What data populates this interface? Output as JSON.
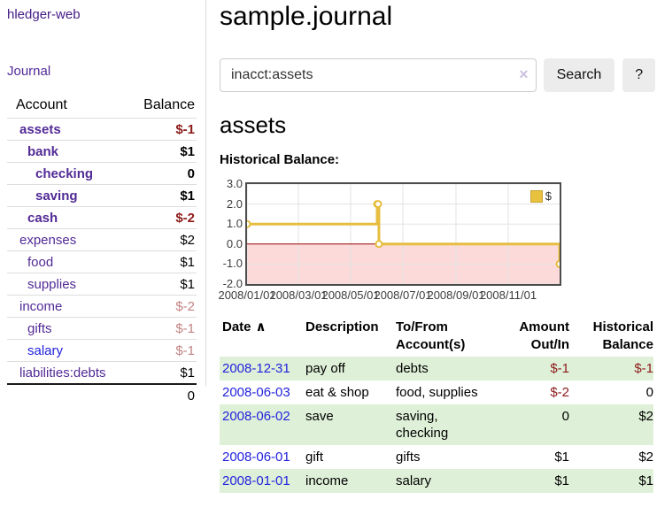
{
  "sidebar": {
    "brand": "hledger-web",
    "nav": {
      "journal": "Journal"
    },
    "table_headers": {
      "account": "Account",
      "balance": "Balance"
    },
    "accounts": [
      {
        "name": "assets",
        "balance": "$-1",
        "level": 1,
        "bold": true
      },
      {
        "name": "bank",
        "balance": "$1",
        "level": 2,
        "bold": true
      },
      {
        "name": "checking",
        "balance": "0",
        "level": 3,
        "bold": true
      },
      {
        "name": "saving",
        "balance": "$1",
        "level": 3,
        "bold": true
      },
      {
        "name": "cash",
        "balance": "$-2",
        "level": 2,
        "bold": true
      },
      {
        "name": "expenses",
        "balance": "$2",
        "level": 1,
        "bold": false
      },
      {
        "name": "food",
        "balance": "$1",
        "level": 2,
        "bold": false
      },
      {
        "name": "supplies",
        "balance": "$1",
        "level": 2,
        "bold": false
      },
      {
        "name": "income",
        "balance": "$-2",
        "level": 1,
        "bold": false
      },
      {
        "name": "gifts",
        "balance": "$-1",
        "level": 2,
        "bold": false
      },
      {
        "name": "salary",
        "balance": "$-1",
        "level": 2,
        "bold": false,
        "unvisited": true
      },
      {
        "name": "liabilities:debts",
        "balance": "$1",
        "level": 1,
        "bold": false
      }
    ],
    "total": "0"
  },
  "header": {
    "title": "sample.journal"
  },
  "search": {
    "value": "inacct:assets",
    "clear_icon": "×",
    "button": "Search",
    "help_button": "?"
  },
  "account_page": {
    "heading": "assets",
    "chart_label": "Historical Balance:"
  },
  "chart_data": {
    "type": "line",
    "title": "Historical Balance",
    "line_style": "step-after",
    "x_range": [
      "2008-01-01",
      "2008-12-31"
    ],
    "y_range": [
      -2,
      3
    ],
    "y_ticks": [
      "3.0",
      "2.0",
      "1.0",
      "0.0",
      "-1.0",
      "-2.0"
    ],
    "x_ticks": [
      {
        "date": "2008-01-01",
        "label": "2008/01/01"
      },
      {
        "date": "2008-03-01",
        "label": "2008/03/01"
      },
      {
        "date": "2008-05-01",
        "label": "2008/05/01"
      },
      {
        "date": "2008-07-01",
        "label": "2008/07/01"
      },
      {
        "date": "2008-09-01",
        "label": "2008/09/01"
      },
      {
        "date": "2008-11-01",
        "label": "2008/11/01"
      }
    ],
    "series": [
      {
        "name": "$",
        "points": [
          [
            "2008-01-01",
            1
          ],
          [
            "2008-06-01",
            2
          ],
          [
            "2008-06-02",
            2
          ],
          [
            "2008-06-03",
            0
          ],
          [
            "2008-12-31",
            -1
          ]
        ]
      }
    ],
    "legend_position": "top-right",
    "grid": true,
    "colors": {
      "series": "#e6bd3f",
      "marker_fill": "#ffffff",
      "negative_region": "#fcdada",
      "zero_line": "#990000",
      "grid": "#e2e2e2",
      "border": "#4d4d4d"
    }
  },
  "transactions": {
    "headers": {
      "date": "Date",
      "sort_indicator": "∧",
      "description": "Description",
      "accounts": "To/From Account(s)",
      "amount": "Amount Out/In",
      "balance": "Historical Balance"
    },
    "rows": [
      {
        "date": "2008-12-31",
        "description": "pay off",
        "accounts": "debts",
        "amount": "$-1",
        "balance": "$-1"
      },
      {
        "date": "2008-06-03",
        "description": "eat & shop",
        "accounts": "food, supplies",
        "amount": "$-2",
        "balance": "0"
      },
      {
        "date": "2008-06-02",
        "description": "save",
        "accounts": "saving, checking",
        "amount": "0",
        "balance": "$2"
      },
      {
        "date": "2008-06-01",
        "description": "gift",
        "accounts": "gifts",
        "amount": "$1",
        "balance": "$2"
      },
      {
        "date": "2008-01-01",
        "description": "income",
        "accounts": "salary",
        "amount": "$1",
        "balance": "$1"
      }
    ]
  }
}
